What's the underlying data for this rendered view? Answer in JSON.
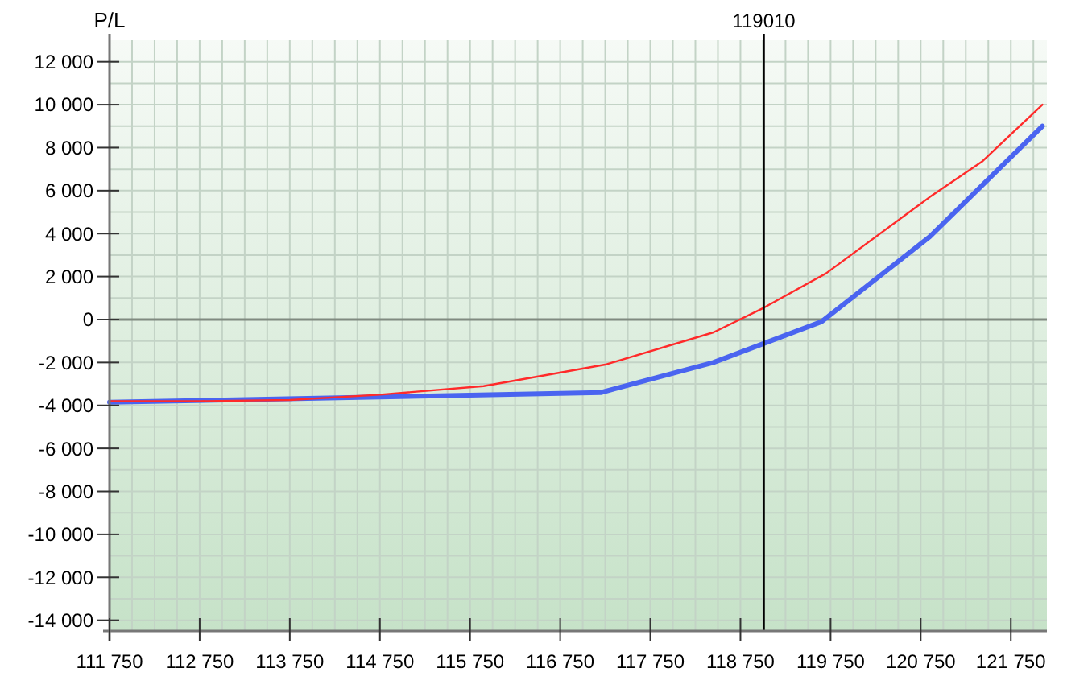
{
  "chart_data": {
    "type": "line",
    "ylabel": "P/L",
    "xlim": [
      111750,
      122150
    ],
    "ylim": [
      -14500,
      13000
    ],
    "xticks": [
      {
        "value": 111750,
        "label": "111 750"
      },
      {
        "value": 112750,
        "label": "112 750"
      },
      {
        "value": 113750,
        "label": "113 750"
      },
      {
        "value": 114750,
        "label": "114 750"
      },
      {
        "value": 115750,
        "label": "115 750"
      },
      {
        "value": 116750,
        "label": "116 750"
      },
      {
        "value": 117750,
        "label": "117 750"
      },
      {
        "value": 118750,
        "label": "118 750"
      },
      {
        "value": 119750,
        "label": "119 750"
      },
      {
        "value": 120750,
        "label": "120 750"
      },
      {
        "value": 121750,
        "label": "121 750"
      }
    ],
    "yticks": [
      {
        "value": -14000,
        "label": "-14 000"
      },
      {
        "value": -12000,
        "label": "-12 000"
      },
      {
        "value": -10000,
        "label": "-10 000"
      },
      {
        "value": -8000,
        "label": "-8 000"
      },
      {
        "value": -6000,
        "label": "-6 000"
      },
      {
        "value": -4000,
        "label": "-4 000"
      },
      {
        "value": -2000,
        "label": "-2 000"
      },
      0,
      {
        "value": 2000,
        "label": "2 000"
      },
      {
        "value": 4000,
        "label": "4 000"
      },
      {
        "value": 6000,
        "label": "6 000"
      },
      {
        "value": 8000,
        "label": "8 000"
      },
      {
        "value": 10000,
        "label": "10 000"
      },
      {
        "value": 12000,
        "label": "12 000"
      }
    ],
    "grid": true,
    "series": [
      {
        "color": "#ff2a2a",
        "x": [
          111750,
          112750,
          113750,
          114750,
          115900,
          117250,
          118450,
          119010,
          119700,
          120850,
          121430,
          122100
        ],
        "values": [
          -3800,
          -3800,
          -3750,
          -3500,
          -3100,
          -2100,
          -600,
          550,
          2150,
          5700,
          7350,
          10000
        ]
      },
      {
        "color": "#4a64f0",
        "x": [
          111750,
          117200,
          118450,
          119650,
          120850,
          122100
        ],
        "values": [
          -3850,
          -3400,
          -2000,
          -100,
          3850,
          9000
        ]
      }
    ],
    "ref_lines": [
      {
        "axis": "y",
        "value": 0,
        "color": "#808a80"
      },
      {
        "axis": "x",
        "value": 119010,
        "label": "119010",
        "color": "#000000"
      }
    ]
  }
}
